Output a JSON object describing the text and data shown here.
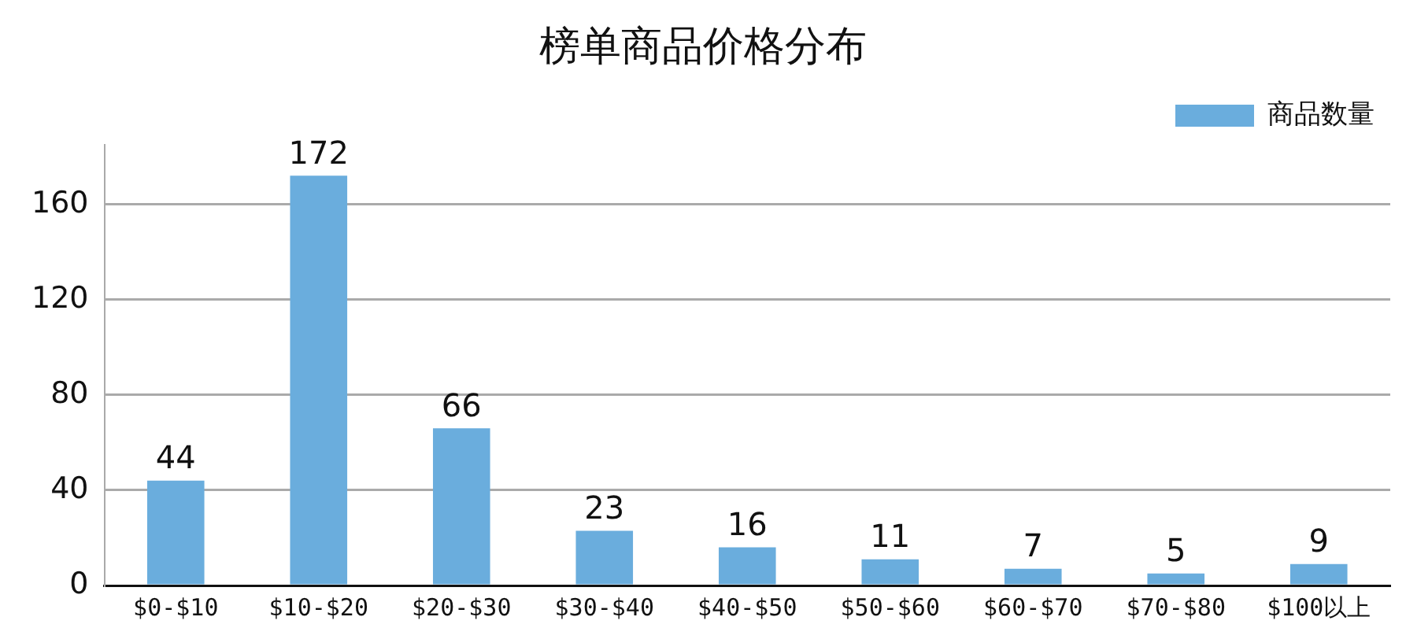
{
  "chart_data": {
    "type": "bar",
    "title": "榜单商品价格分布",
    "categories": [
      "$0-$10",
      "$10-$20",
      "$20-$30",
      "$30-$40",
      "$40-$50",
      "$50-$60",
      "$60-$70",
      "$70-$80",
      "$100以上"
    ],
    "series": [
      {
        "name": "商品数量",
        "color": "#6aaddd",
        "values": [
          44,
          172,
          66,
          23,
          16,
          11,
          7,
          5,
          9
        ]
      }
    ],
    "ylim": [
      0,
      185
    ],
    "yticks": [
      0,
      40,
      80,
      120,
      160
    ],
    "grid": "y",
    "legend": "top right",
    "data_labels": true
  }
}
